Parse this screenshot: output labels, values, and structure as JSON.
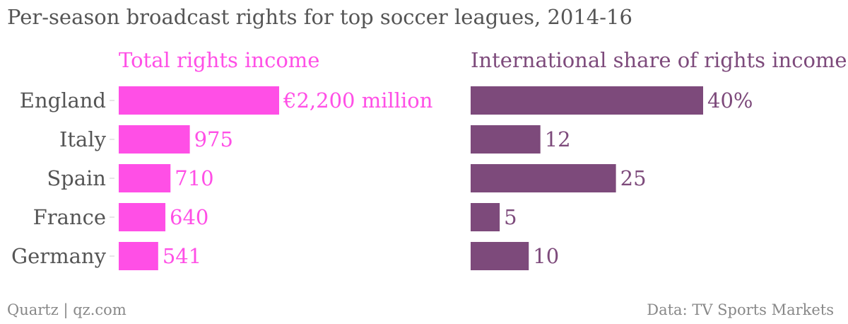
{
  "title": "Per-season broadcast rights for top soccer leagues, 2014-16",
  "footer": {
    "source_left": "Quartz | qz.com",
    "source_right": "Data: TV Sports Markets"
  },
  "colors": {
    "total": "#ff4fe6",
    "international": "#7d4a7b",
    "text": "#555555",
    "footer": "#888888"
  },
  "chart_data": [
    {
      "type": "bar",
      "orientation": "horizontal",
      "title": "Total rights income",
      "categories": [
        "England",
        "Italy",
        "Spain",
        "France",
        "Germany"
      ],
      "values": [
        2200,
        975,
        710,
        640,
        541
      ],
      "value_labels": [
        "€2,200 million",
        "975",
        "710",
        "640",
        "541"
      ],
      "xlim": [
        0,
        2200
      ],
      "grid": false
    },
    {
      "type": "bar",
      "orientation": "horizontal",
      "title": "International share of rights income",
      "categories": [
        "England",
        "Italy",
        "Spain",
        "France",
        "Germany"
      ],
      "values": [
        40,
        12,
        25,
        5,
        10
      ],
      "value_labels": [
        "40%",
        "12",
        "25",
        "5",
        "10"
      ],
      "xlim": [
        0,
        40
      ],
      "grid": false
    }
  ]
}
